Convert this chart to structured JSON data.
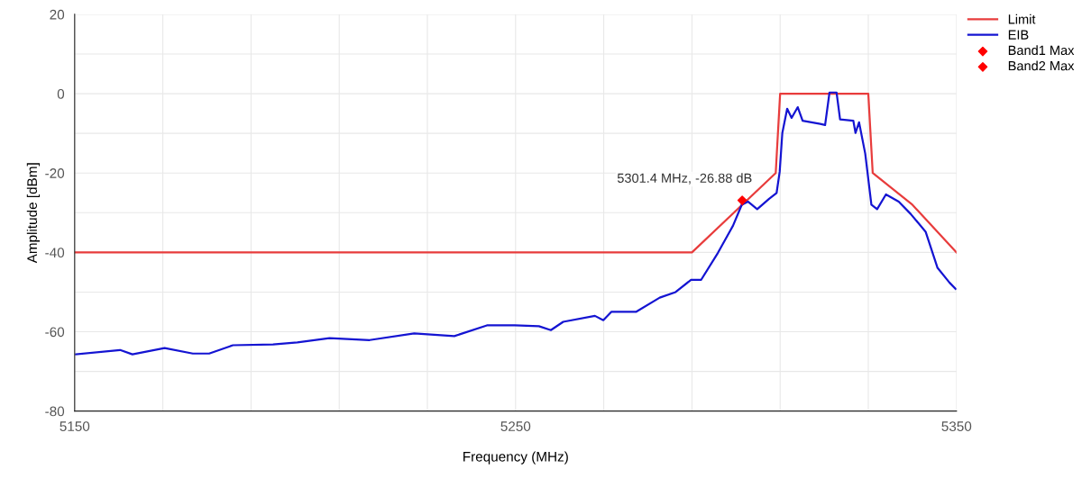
{
  "chart_data": {
    "type": "line",
    "xlabel": "Frequency (MHz)",
    "ylabel": "Amplitude [dBm]",
    "xlim": [
      5150,
      5350
    ],
    "ylim": [
      -80,
      20
    ],
    "xticks": [
      5150,
      {
        "value": 5170,
        "label": null
      },
      {
        "value": 5190,
        "label": null
      },
      {
        "value": 5210,
        "label": null
      },
      {
        "value": 5230,
        "label": null
      },
      5250,
      {
        "value": 5270,
        "label": null
      },
      {
        "value": 5290,
        "label": null
      },
      {
        "value": 5310,
        "label": null
      },
      {
        "value": 5330,
        "label": null
      },
      5350
    ],
    "yticks": [
      -80,
      {
        "value": -70,
        "label": null
      },
      -60,
      {
        "value": -50,
        "label": null
      },
      -40,
      {
        "value": -30,
        "label": null
      },
      -20,
      {
        "value": -10,
        "label": null
      },
      0,
      {
        "value": 10,
        "label": null
      },
      20
    ],
    "grid": true,
    "legend": "top right",
    "annotations": [
      {
        "text": "5301.4 MHz, -26.88 dB",
        "x": 5301.4,
        "y": -26.88
      }
    ],
    "series": [
      {
        "name": "Limit",
        "color": "#e83c3c",
        "marker": "none",
        "line_style": "solid",
        "x": [
          5150,
          5290,
          5309,
          5310,
          5330,
          5331,
          5340,
          5350
        ],
        "values": [
          -40,
          -40,
          -20,
          0,
          0,
          -20,
          -28,
          -40
        ]
      },
      {
        "name": "EIB",
        "color": "#1414d2",
        "marker": "none",
        "line_style": "solid",
        "x": [
          5150.3,
          5160.3,
          5163.1,
          5170.4,
          5176.8,
          5180.5,
          5185.9,
          5195.0,
          5200.5,
          5207.8,
          5216.9,
          5227.0,
          5236.1,
          5243.5,
          5249.8,
          5255.3,
          5258.0,
          5260.8,
          5268.0,
          5269.9,
          5271.7,
          5277.3,
          5282.7,
          5286.3,
          5289.8,
          5292.1,
          5295.9,
          5299.3,
          5301.3,
          5302.7,
          5304.8,
          5307.5,
          5309.2,
          5309.9,
          5310.5,
          5311.6,
          5312.6,
          5314.0,
          5315.1,
          5319.1,
          5320.2,
          5321.2,
          5322.8,
          5323.6,
          5326.6,
          5327.1,
          5327.9,
          5329.3,
          5330.7,
          5332.0,
          5334.0,
          5336.9,
          5339.6,
          5343.0,
          5345.7,
          5348.4,
          5349.8
        ],
        "values": [
          -65.7,
          -64.6,
          -65.7,
          -64.1,
          -65.5,
          -65.5,
          -63.4,
          -63.2,
          -62.7,
          -61.6,
          -62.1,
          -60.4,
          -61.1,
          -58.4,
          -58.4,
          -58.6,
          -59.6,
          -57.5,
          -56.0,
          -57.1,
          -55.0,
          -55.0,
          -51.4,
          -50.0,
          -46.9,
          -46.9,
          -40.1,
          -33.3,
          -28.0,
          -27.2,
          -29.1,
          -26.5,
          -25.0,
          -19.7,
          -9.9,
          -3.8,
          -6.1,
          -3.4,
          -6.8,
          -7.6,
          -7.9,
          0.3,
          0.3,
          -6.5,
          -6.8,
          -9.9,
          -7.2,
          -15.1,
          -28.0,
          -29.1,
          -25.4,
          -27.2,
          -30.3,
          -34.8,
          -43.9,
          -47.6,
          -49.2
        ]
      },
      {
        "name": "Band1 Max",
        "type": "scatter",
        "color": "#ff0000",
        "marker": "diamond",
        "x": [
          5301.4
        ],
        "values": [
          -26.88
        ]
      },
      {
        "name": "Band2 Max",
        "type": "scatter",
        "color": "#ff0000",
        "marker": "diamond"
      }
    ]
  }
}
